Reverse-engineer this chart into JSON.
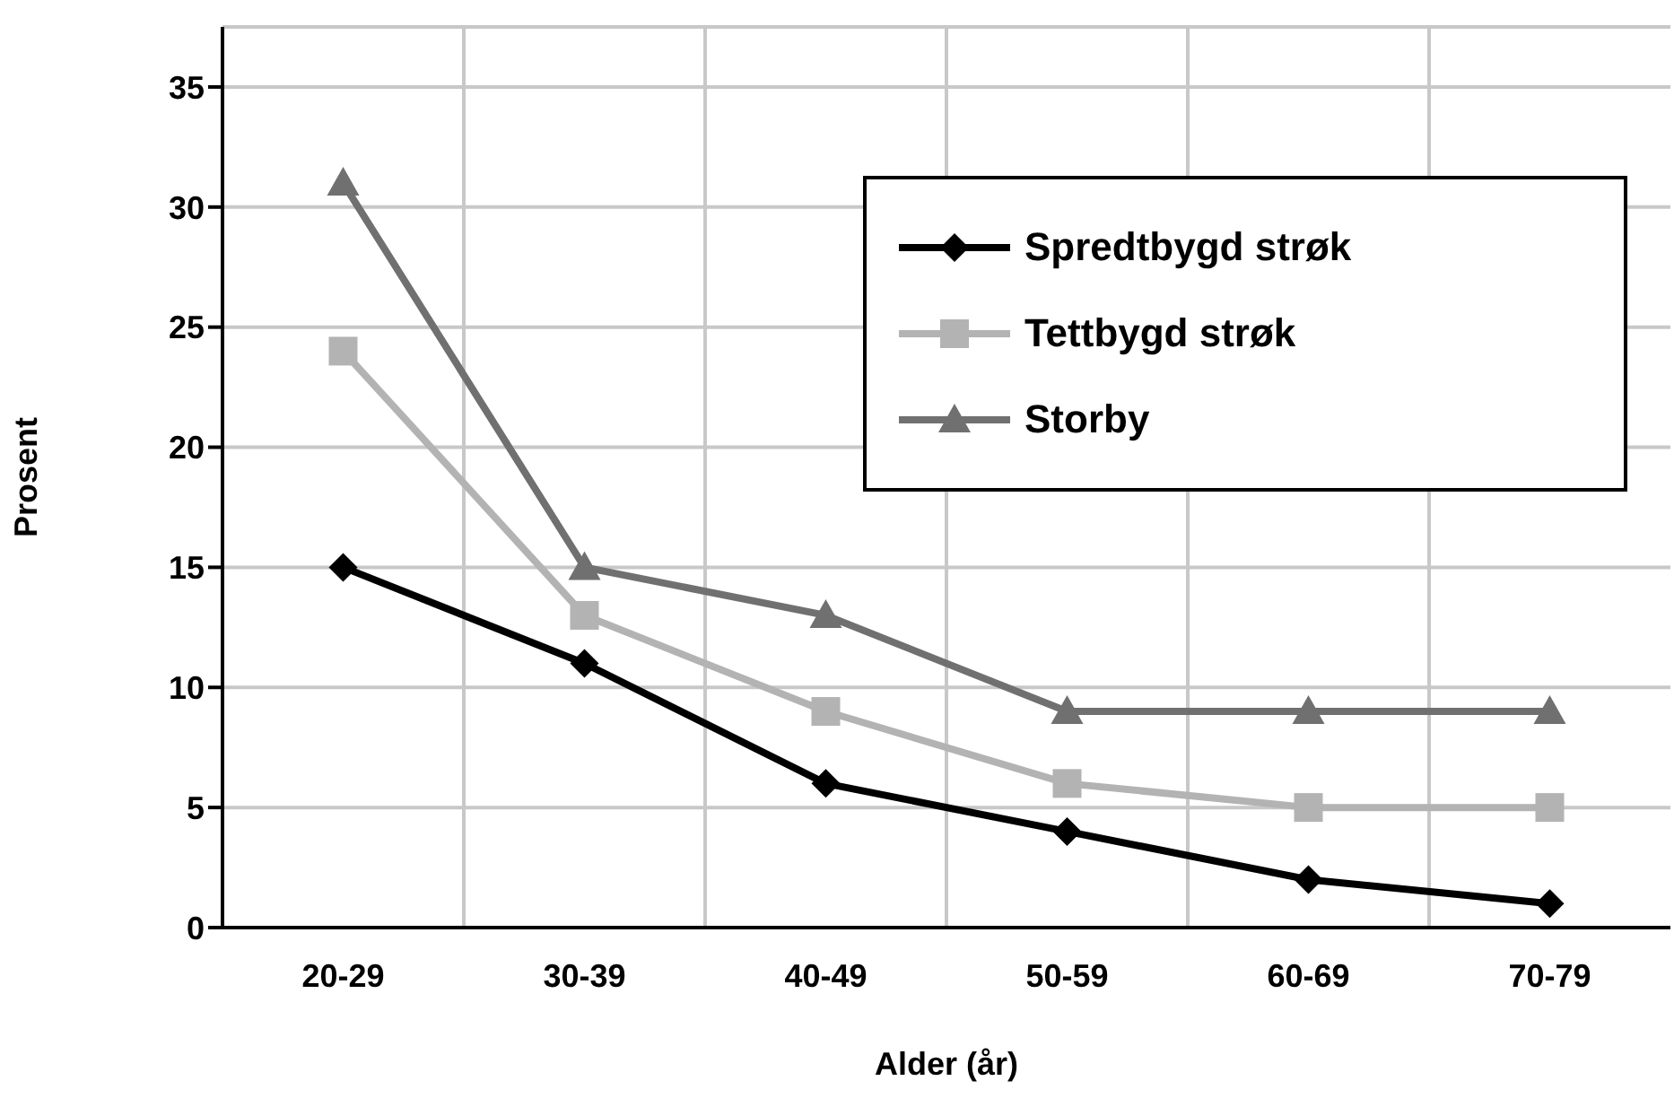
{
  "chart_data": {
    "type": "line",
    "xlabel": "Alder (år)",
    "ylabel": "Prosent",
    "categories": [
      "20-29",
      "30-39",
      "40-49",
      "50-59",
      "60-69",
      "70-79"
    ],
    "series": [
      {
        "name": "Spredtbygd strøk",
        "color": "#000000",
        "marker": "diamond",
        "values": [
          15,
          11,
          6,
          4,
          2,
          1
        ]
      },
      {
        "name": "Tettbygd strøk",
        "color": "#b3b3b3",
        "marker": "square",
        "values": [
          24,
          13,
          9,
          6,
          5,
          5
        ]
      },
      {
        "name": "Storby",
        "color": "#707070",
        "marker": "triangle",
        "values": [
          31,
          15,
          13,
          9,
          9,
          9
        ]
      }
    ],
    "ylim": [
      0,
      37.5
    ],
    "yticks": [
      0,
      5,
      10,
      15,
      20,
      25,
      30,
      35
    ],
    "grid": true,
    "legend": "top right"
  }
}
